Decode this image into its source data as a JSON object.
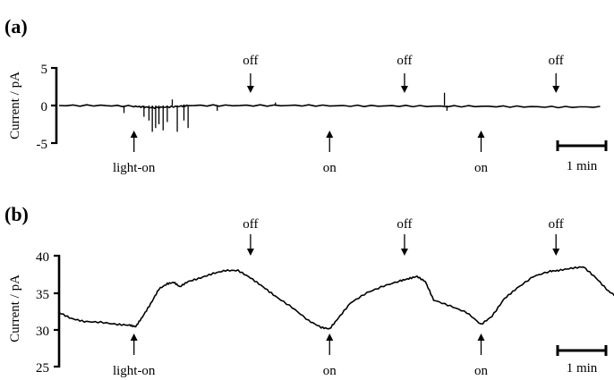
{
  "chart_data": [
    {
      "type": "line",
      "panel_label": "(a)",
      "ylabel": "Current / pA",
      "yticks": [
        "5",
        "0",
        "-5"
      ],
      "ylim": [
        -5,
        5
      ],
      "xunits": "min",
      "x": [
        0,
        0.5,
        0.9,
        1.0,
        1.15,
        1.3,
        1.45,
        1.55,
        2.0,
        2.5,
        3.0,
        3.5,
        4.0,
        4.5,
        5.0,
        5.5,
        6.0,
        6.5
      ],
      "y": [
        0,
        0,
        -0.1,
        -0.2,
        -0.3,
        -0.2,
        -0.1,
        0,
        0,
        0,
        0,
        -0.05,
        -0.05,
        -0.1,
        -0.1,
        -0.15,
        -0.2,
        -0.2
      ],
      "spikes": [
        {
          "x": 0.78,
          "y": -1.0
        },
        {
          "x": 1.02,
          "y": -1.5
        },
        {
          "x": 1.08,
          "y": -2.0
        },
        {
          "x": 1.12,
          "y": -3.5
        },
        {
          "x": 1.16,
          "y": -3.0
        },
        {
          "x": 1.2,
          "y": -2.5
        },
        {
          "x": 1.25,
          "y": -3.3
        },
        {
          "x": 1.3,
          "y": -2.2
        },
        {
          "x": 1.36,
          "y": 0.8
        },
        {
          "x": 1.42,
          "y": -3.5
        },
        {
          "x": 1.5,
          "y": -2.0
        },
        {
          "x": 1.55,
          "y": -3.0
        },
        {
          "x": 1.9,
          "y": -0.7
        },
        {
          "x": 2.6,
          "y": 0.4
        },
        {
          "x": 4.63,
          "y": 1.7
        },
        {
          "x": 4.66,
          "y": -0.7
        }
      ],
      "annotations": [
        {
          "text": "light-on",
          "x": 0.9,
          "dir": "up"
        },
        {
          "text": "off",
          "x": 2.3,
          "dir": "down"
        },
        {
          "text": "on",
          "x": 3.25,
          "dir": "up"
        },
        {
          "text": "off",
          "x": 4.15,
          "dir": "down"
        },
        {
          "text": "on",
          "x": 5.07,
          "dir": "up"
        },
        {
          "text": "off",
          "x": 5.97,
          "dir": "down"
        }
      ],
      "scalebar": {
        "label": "1 min",
        "length": 1
      }
    },
    {
      "type": "line",
      "panel_label": "(b)",
      "ylabel": "Current / pA",
      "yticks": [
        "40",
        "35",
        "30",
        "25"
      ],
      "ylim": [
        25,
        40
      ],
      "xunits": "min",
      "x": [
        0,
        0.15,
        0.3,
        0.5,
        0.7,
        0.85,
        0.92,
        1.0,
        1.1,
        1.2,
        1.3,
        1.38,
        1.45,
        1.55,
        1.7,
        1.85,
        2.0,
        2.15,
        2.3,
        2.45,
        2.6,
        2.8,
        3.0,
        3.15,
        3.25,
        3.35,
        3.5,
        3.7,
        3.9,
        4.1,
        4.2,
        4.3,
        4.4,
        4.5,
        4.7,
        4.9,
        5.07,
        5.2,
        5.35,
        5.5,
        5.7,
        5.9,
        6.0,
        6.15,
        6.3,
        6.45,
        6.6,
        6.7
      ],
      "y": [
        32.3,
        31.5,
        31.1,
        31.0,
        30.7,
        30.6,
        30.4,
        31.7,
        33.5,
        35.5,
        36.2,
        36.4,
        35.8,
        36.5,
        37.0,
        37.6,
        38.0,
        38.0,
        37.0,
        35.8,
        34.5,
        33.0,
        31.2,
        30.3,
        30.1,
        31.5,
        33.6,
        35.0,
        35.9,
        36.6,
        36.9,
        37.2,
        36.5,
        34.0,
        33.2,
        32.3,
        30.7,
        31.8,
        34.2,
        35.6,
        37.2,
        37.9,
        38.0,
        38.3,
        38.5,
        37.0,
        35.2,
        34.5
      ],
      "annotations": [
        {
          "text": "light-on",
          "x": 0.9,
          "dir": "up"
        },
        {
          "text": "off",
          "x": 2.3,
          "dir": "down"
        },
        {
          "text": "on",
          "x": 3.25,
          "dir": "up"
        },
        {
          "text": "off",
          "x": 4.15,
          "dir": "down"
        },
        {
          "text": "on",
          "x": 5.07,
          "dir": "up"
        },
        {
          "text": "off",
          "x": 5.97,
          "dir": "down"
        }
      ],
      "scalebar": {
        "label": "1 min",
        "length": 1
      }
    }
  ]
}
